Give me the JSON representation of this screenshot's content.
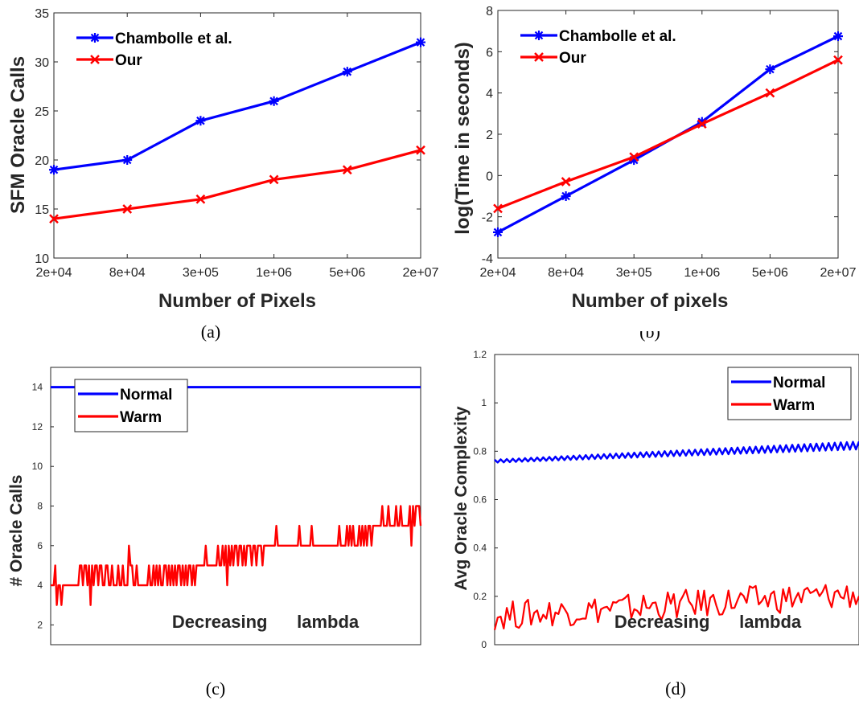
{
  "chart_data": [
    {
      "type": "line",
      "caption": "(a)",
      "categories": [
        "2e+04",
        "8e+04",
        "3e+05",
        "1e+06",
        "5e+06",
        "2e+07"
      ],
      "series": [
        {
          "name": "Chambolle et al.",
          "color": "#0000ff",
          "marker": "asterisk",
          "values": [
            19,
            20,
            24,
            26,
            29,
            32
          ]
        },
        {
          "name": "Our",
          "color": "#ff0000",
          "marker": "x",
          "values": [
            14,
            15,
            16,
            18,
            19,
            21
          ]
        }
      ],
      "xlabel": "Number of Pixels",
      "ylabel": "SFM Oracle Calls",
      "ylim": [
        10,
        35
      ],
      "yticks": [
        "10",
        "15",
        "20",
        "25",
        "30",
        "35"
      ],
      "legend": "top-left"
    },
    {
      "type": "line",
      "caption": "(b)",
      "categories": [
        "2e+04",
        "8e+04",
        "3e+05",
        "1e+06",
        "5e+06",
        "2e+07"
      ],
      "series": [
        {
          "name": "Chambolle et al.",
          "color": "#0000ff",
          "marker": "asterisk",
          "values": [
            -2.75,
            -1.0,
            0.75,
            2.6,
            5.15,
            6.75
          ]
        },
        {
          "name": "Our",
          "color": "#ff0000",
          "marker": "x",
          "values": [
            -1.6,
            -0.3,
            0.9,
            2.5,
            4.0,
            5.6
          ]
        }
      ],
      "xlabel": "Number of pixels",
      "ylabel": "log(Time in seconds)",
      "ylim": [
        -4,
        8
      ],
      "yticks": [
        "-4",
        "-2",
        "0",
        "2",
        "4",
        "6",
        "8"
      ],
      "legend": "top-left"
    },
    {
      "type": "line",
      "caption": "(c)",
      "xlabel": "Decreasing      lambda",
      "ylabel": "# Oracle Calls",
      "ylim": [
        1,
        15
      ],
      "yticks": [
        "2",
        "4",
        "6",
        "8",
        "10",
        "12",
        "14"
      ],
      "series": [
        {
          "name": "Normal",
          "color": "#0000ff",
          "values": [
            14,
            14
          ]
        },
        {
          "name": "Warm",
          "color": "#ff0000",
          "values": [
            4,
            4,
            4,
            5,
            3,
            4,
            4,
            3,
            4,
            4,
            4,
            4,
            4,
            4,
            4,
            4,
            4,
            4,
            4,
            5,
            5,
            4,
            5,
            5,
            4,
            5,
            3,
            5,
            4,
            5,
            5,
            4,
            5,
            5,
            4,
            4,
            5,
            5,
            4,
            4,
            5,
            4,
            4,
            4,
            5,
            4,
            4,
            5,
            4,
            4,
            4,
            6,
            5,
            5,
            4,
            4,
            5,
            4,
            4,
            4,
            4,
            4,
            4,
            4,
            5,
            4,
            4,
            5,
            4,
            5,
            4,
            5,
            4,
            4,
            5,
            5,
            4,
            5,
            4,
            5,
            4,
            5,
            4,
            5,
            5,
            4,
            5,
            4,
            5,
            4,
            5,
            5,
            4,
            5,
            4,
            5,
            5,
            5,
            5,
            5,
            5,
            6,
            5,
            5,
            5,
            5,
            5,
            5,
            5,
            6,
            5,
            5,
            6,
            5,
            6,
            4,
            6,
            5,
            6,
            5,
            6,
            6,
            5,
            6,
            6,
            5,
            6,
            5,
            6,
            6,
            6,
            5,
            6,
            6,
            5,
            6,
            6,
            6,
            5,
            6,
            6,
            6,
            6,
            6,
            6,
            6,
            6,
            7,
            6,
            6,
            6,
            6,
            6,
            6,
            6,
            6,
            6,
            6,
            6,
            6,
            6,
            6,
            7,
            6,
            6,
            6,
            6,
            6,
            6,
            6,
            7,
            6,
            6,
            6,
            6,
            6,
            6,
            6,
            6,
            6,
            6,
            6,
            6,
            6,
            6,
            6,
            6,
            6,
            7,
            6,
            6,
            6,
            6,
            7,
            6,
            7,
            6,
            7,
            6,
            6,
            6,
            7,
            6,
            7,
            6,
            7,
            6,
            7,
            7,
            6,
            7,
            7,
            7,
            7,
            7,
            7,
            8,
            7,
            7,
            7,
            8,
            7,
            7,
            7,
            7,
            8,
            7,
            7,
            8,
            7,
            7,
            7,
            7,
            7,
            8,
            6,
            8,
            7,
            8,
            8,
            8,
            7
          ]
        }
      ],
      "legend": "top-left"
    },
    {
      "type": "line",
      "caption": "(d)",
      "xlabel": "Decreasing      lambda",
      "ylabel": "Avg Oracle Complexity",
      "ylim": [
        0,
        1.2
      ],
      "yticks": [
        "0",
        "0.2",
        "0.4",
        "0.6",
        "0.8",
        "1",
        "1.2"
      ],
      "series": [
        {
          "name": "Normal",
          "color": "#0000ff",
          "start": 0.765,
          "end": 0.84
        },
        {
          "name": "Warm",
          "color": "#ff0000",
          "start": 0.12,
          "end": 0.21
        }
      ],
      "legend": "top-right"
    }
  ]
}
